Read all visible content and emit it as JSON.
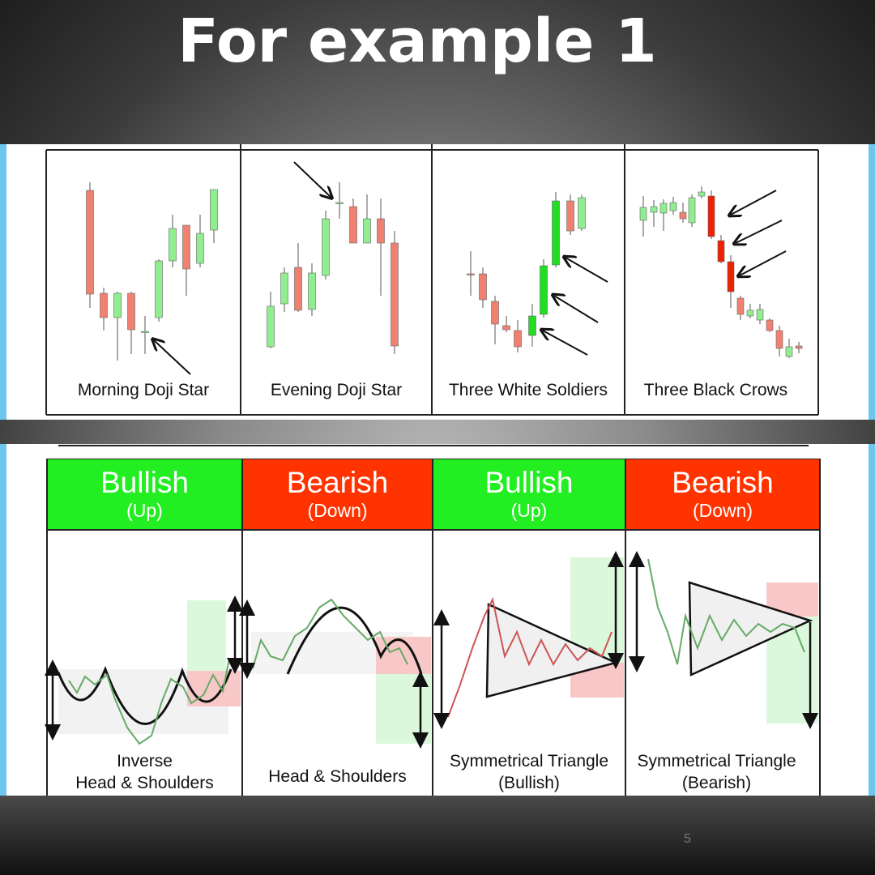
{
  "title": "For example 1",
  "colors": {
    "bullish": "#22ee22",
    "bearish": "#ff3300",
    "candle_up": "#90ee90",
    "candle_down": "#f08070"
  },
  "candlestick_patterns": [
    {
      "label": "Morning Doji Star"
    },
    {
      "label": "Evening Doji Star"
    },
    {
      "label": "Three White Soldiers"
    },
    {
      "label": "Three Black Crows"
    }
  ],
  "chart_patterns": [
    {
      "header": "Bullish",
      "sub": "(Up)",
      "label_line1": "Inverse",
      "label_line2": "Head & Shoulders"
    },
    {
      "header": "Bearish",
      "sub": "(Down)",
      "label_line1": "",
      "label_line2": "Head & Shoulders"
    },
    {
      "header": "Bullish",
      "sub": "(Up)",
      "label_line1": "Symmetrical Triangle",
      "label_line2": "(Bullish)"
    },
    {
      "header": "Bearish",
      "sub": "(Down)",
      "label_line1": "Symmetrical Triangle",
      "label_line2": "(Bearish)"
    }
  ],
  "page_number": "5"
}
